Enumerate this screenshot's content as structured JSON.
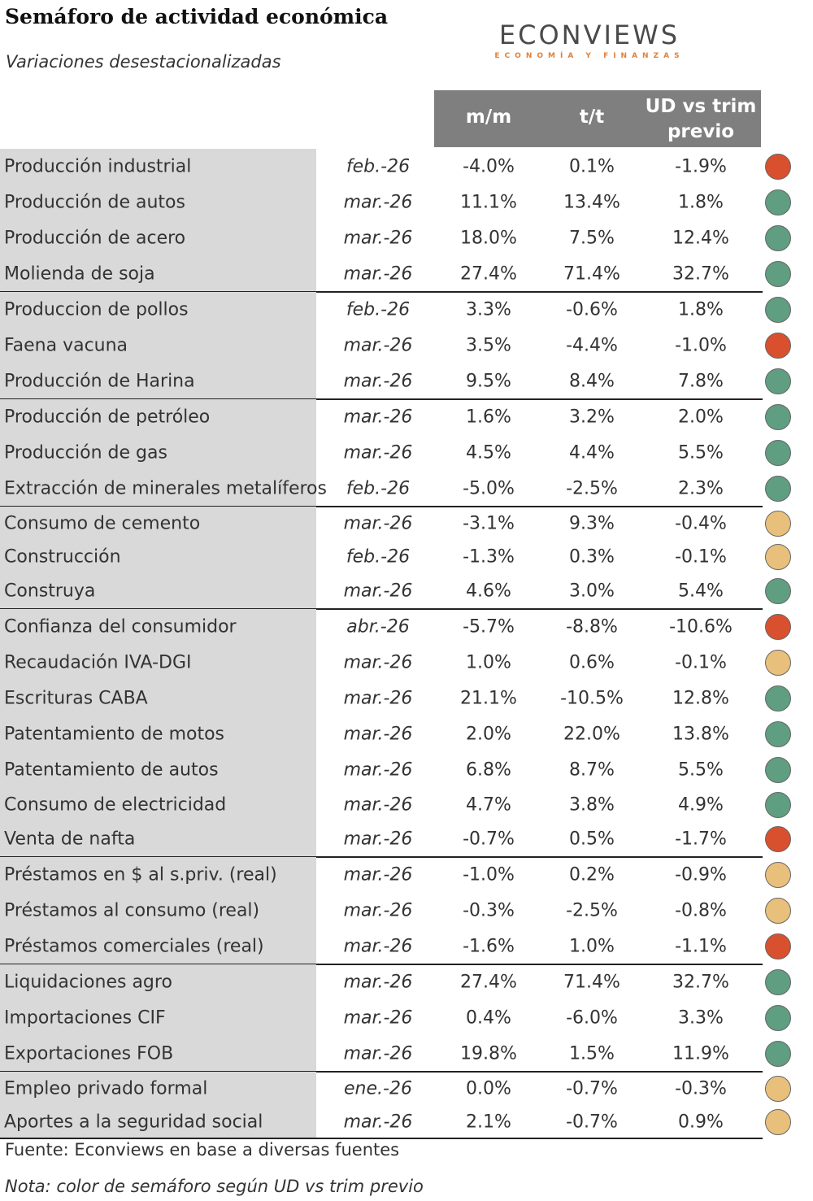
{
  "title": "Semáforo de actividad económica",
  "subtitle": "Variaciones desestacionalizadas",
  "logo": {
    "main": "ECONVIEWS",
    "sub": "ECONOMÍA Y FINANZAS"
  },
  "headers": {
    "mm": "m/m",
    "tt": "t/t",
    "ud_line1": "UD vs trim",
    "ud_line2": "previo"
  },
  "colors": {
    "green": "#5f9e80",
    "red": "#d9502e",
    "yellow": "#e8c07c",
    "header_bg": "#7f7f7f",
    "shade": "#d9d9d9"
  },
  "rows": [
    {
      "name": "Producción industrial",
      "date": "feb.-26",
      "mm": "-4.0%",
      "tt": "0.1%",
      "ud": "-1.9%",
      "light": "red"
    },
    {
      "name": "Producción de autos",
      "date": "mar.-26",
      "mm": "11.1%",
      "tt": "13.4%",
      "ud": "1.8%",
      "light": "green"
    },
    {
      "name": "Producción de acero",
      "date": "mar.-26",
      "mm": "18.0%",
      "tt": "7.5%",
      "ud": "12.4%",
      "light": "green"
    },
    {
      "name": "Molienda de soja",
      "date": "mar.-26",
      "mm": "27.4%",
      "tt": "71.4%",
      "ud": "32.7%",
      "light": "green"
    },
    {
      "name": "Produccion de pollos",
      "date": "feb.-26",
      "mm": "3.3%",
      "tt": "-0.6%",
      "ud": "1.8%",
      "light": "green"
    },
    {
      "name": "Faena vacuna",
      "date": "mar.-26",
      "mm": "3.5%",
      "tt": "-4.4%",
      "ud": "-1.0%",
      "light": "red"
    },
    {
      "name": "Producción de Harina",
      "date": "mar.-26",
      "mm": "9.5%",
      "tt": "8.4%",
      "ud": "7.8%",
      "light": "green"
    },
    {
      "name": "Producción de petróleo",
      "date": "mar.-26",
      "mm": "1.6%",
      "tt": "3.2%",
      "ud": "2.0%",
      "light": "green"
    },
    {
      "name": "Producción de gas",
      "date": "mar.-26",
      "mm": "4.5%",
      "tt": "4.4%",
      "ud": "5.5%",
      "light": "green"
    },
    {
      "name": "Extracción de minerales metalíferos",
      "date": "feb.-26",
      "mm": "-5.0%",
      "tt": "-2.5%",
      "ud": "2.3%",
      "light": "green"
    },
    {
      "name": "Consumo de cemento",
      "date": "mar.-26",
      "mm": "-3.1%",
      "tt": "9.3%",
      "ud": "-0.4%",
      "light": "yellow"
    },
    {
      "name": "Construcción",
      "date": "feb.-26",
      "mm": "-1.3%",
      "tt": "0.3%",
      "ud": "-0.1%",
      "light": "yellow"
    },
    {
      "name": "Construya",
      "date": "mar.-26",
      "mm": "4.6%",
      "tt": "3.0%",
      "ud": "5.4%",
      "light": "green"
    },
    {
      "name": "Confianza del consumidor",
      "date": "abr.-26",
      "mm": "-5.7%",
      "tt": "-8.8%",
      "ud": "-10.6%",
      "light": "red"
    },
    {
      "name": "Recaudación IVA-DGI",
      "date": "mar.-26",
      "mm": "1.0%",
      "tt": "0.6%",
      "ud": "-0.1%",
      "light": "yellow"
    },
    {
      "name": "Escrituras CABA",
      "date": "mar.-26",
      "mm": "21.1%",
      "tt": "-10.5%",
      "ud": "12.8%",
      "light": "green"
    },
    {
      "name": "Patentamiento de motos",
      "date": "mar.-26",
      "mm": "2.0%",
      "tt": "22.0%",
      "ud": "13.8%",
      "light": "green"
    },
    {
      "name": "Patentamiento de autos",
      "date": "mar.-26",
      "mm": "6.8%",
      "tt": "8.7%",
      "ud": "5.5%",
      "light": "green"
    },
    {
      "name": "Consumo de electricidad",
      "date": "mar.-26",
      "mm": "4.7%",
      "tt": "3.8%",
      "ud": "4.9%",
      "light": "green"
    },
    {
      "name": "Venta de nafta",
      "date": "mar.-26",
      "mm": "-0.7%",
      "tt": "0.5%",
      "ud": "-1.7%",
      "light": "red"
    },
    {
      "name": "Préstamos en $ al s.priv. (real)",
      "date": "mar.-26",
      "mm": "-1.0%",
      "tt": "0.2%",
      "ud": "-0.9%",
      "light": "yellow"
    },
    {
      "name": "Préstamos al consumo (real)",
      "date": "mar.-26",
      "mm": "-0.3%",
      "tt": "-2.5%",
      "ud": "-0.8%",
      "light": "yellow"
    },
    {
      "name": "Préstamos comerciales (real)",
      "date": "mar.-26",
      "mm": "-1.6%",
      "tt": "1.0%",
      "ud": "-1.1%",
      "light": "red"
    },
    {
      "name": "Liquidaciones agro",
      "date": "mar.-26",
      "mm": "27.4%",
      "tt": "71.4%",
      "ud": "32.7%",
      "light": "green"
    },
    {
      "name": "Importaciones CIF",
      "date": "mar.-26",
      "mm": "0.4%",
      "tt": "-6.0%",
      "ud": "3.3%",
      "light": "green"
    },
    {
      "name": "Exportaciones FOB",
      "date": "mar.-26",
      "mm": "19.8%",
      "tt": "1.5%",
      "ud": "11.9%",
      "light": "green"
    },
    {
      "name": "Empleo privado formal",
      "date": "ene.-26",
      "mm": "0.0%",
      "tt": "-0.7%",
      "ud": "-0.3%",
      "light": "yellow"
    },
    {
      "name": "Aportes a la seguridad social",
      "date": "mar.-26",
      "mm": "2.1%",
      "tt": "-0.7%",
      "ud": "0.9%",
      "light": "yellow"
    }
  ],
  "footer": {
    "source": "Fuente: Econviews en base a diversas fuentes",
    "note": "Nota: color de semáforo según UD vs trim previo"
  }
}
